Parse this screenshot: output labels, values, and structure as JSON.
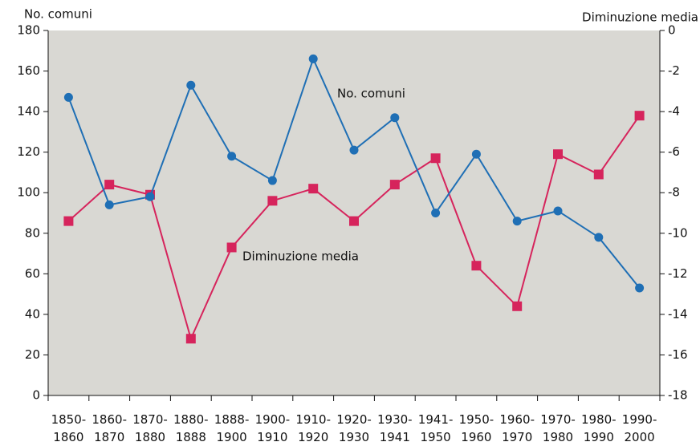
{
  "chart_data": {
    "type": "line",
    "y_label": "No. comuni",
    "y2_label": "Diminuzione media",
    "categories": [
      [
        "1850-",
        "1860"
      ],
      [
        "1860-",
        "1870"
      ],
      [
        "1870-",
        "1880"
      ],
      [
        "1880-",
        "1888"
      ],
      [
        "1888-",
        "1900"
      ],
      [
        "1900-",
        "1910"
      ],
      [
        "1910-",
        "1920"
      ],
      [
        "1920-",
        "1930"
      ],
      [
        "1930-",
        "1941"
      ],
      [
        "1941-",
        "1950"
      ],
      [
        "1950-",
        "1960"
      ],
      [
        "1960-",
        "1970"
      ],
      [
        "1970-",
        "1980"
      ],
      [
        "1980-",
        "1990"
      ],
      [
        "1990-",
        "2000"
      ]
    ],
    "series": [
      {
        "name": "No. comuni",
        "color": "#1f6fb5",
        "marker": "circle",
        "axis": "y",
        "values": [
          147,
          94,
          98,
          153,
          118,
          106,
          166,
          121,
          137,
          90,
          119,
          86,
          91,
          78,
          53
        ]
      },
      {
        "name": "Diminuzione media",
        "color": "#d6245c",
        "marker": "square",
        "axis": "y2",
        "values": [
          -9.4,
          -7.6,
          -8.1,
          -15.2,
          -10.7,
          -8.4,
          -7.8,
          -9.4,
          -7.6,
          -6.3,
          -11.6,
          -13.6,
          -6.1,
          -7.1,
          -4.2
        ]
      }
    ],
    "ylim": [
      0,
      180
    ],
    "yticks": [
      0,
      20,
      40,
      60,
      80,
      100,
      120,
      140,
      160,
      180
    ],
    "y2lim": [
      -18,
      0
    ],
    "y2ticks": [
      -18,
      -16,
      -14,
      -12,
      -10,
      -8,
      -6,
      -4,
      -2,
      0
    ]
  }
}
